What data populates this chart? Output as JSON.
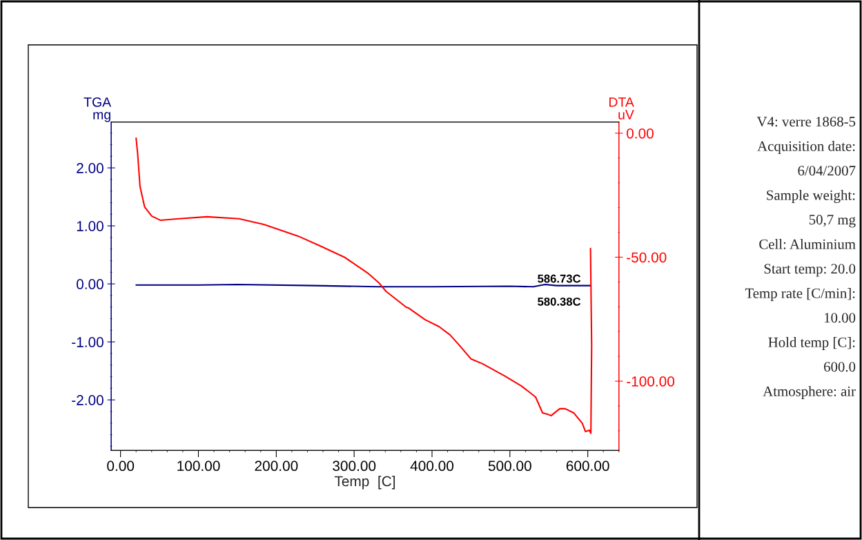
{
  "chart_data": [
    {
      "type": "line",
      "xlabel": "Temp  [C]",
      "ylabel": "TGA\nmg",
      "y2label": "DTA\nuV",
      "xlim": [
        -12,
        640
      ],
      "xticks": [
        {
          "value": 0,
          "label": "0.00"
        },
        {
          "value": 100,
          "label": "100.00"
        },
        {
          "value": 200,
          "label": "200.00"
        },
        {
          "value": 300,
          "label": "300.00"
        },
        {
          "value": 400,
          "label": "400.00"
        },
        {
          "value": 500,
          "label": "500.00"
        },
        {
          "value": 600,
          "label": "600.00"
        }
      ],
      "ylim": [
        -2.87,
        2.79
      ],
      "yticks": [
        {
          "value": -2,
          "label": "-2.00"
        },
        {
          "value": -1,
          "label": "-1.00"
        },
        {
          "value": 0,
          "label": "0.00"
        },
        {
          "value": 1,
          "label": "1.00"
        },
        {
          "value": 2,
          "label": "2.00"
        }
      ],
      "y2lim": [
        -127.9,
        4.5
      ],
      "y2ticks": [
        {
          "value": -100,
          "label": "-100.00"
        },
        {
          "value": -50,
          "label": "-50.00"
        },
        {
          "value": 0,
          "label": "0.00"
        }
      ],
      "grid": false,
      "legend": false,
      "line_style": "solid",
      "marker": "none",
      "annotations": [
        "586.73C",
        "580.38C"
      ],
      "series": [
        {
          "color": "#000080",
          "axis": "y",
          "x": [
            20,
            100,
            150,
            250,
            330,
            400,
            500,
            530,
            545,
            560,
            600,
            604
          ],
          "values": [
            -0.02,
            -0.02,
            -0.01,
            -0.03,
            -0.05,
            -0.05,
            -0.04,
            -0.05,
            -0.01,
            -0.03,
            -0.03,
            -0.03
          ]
        },
        {
          "color": "#ff0000",
          "axis": "y2",
          "x": [
            20,
            22,
            25,
            31,
            40,
            51,
            75,
            111,
            152,
            184,
            228,
            258,
            288,
            317,
            332,
            341,
            367,
            370,
            391,
            409,
            423,
            435,
            450,
            465,
            494,
            515,
            533,
            542,
            549,
            553,
            564,
            571,
            582,
            593,
            597,
            602,
            604,
            605,
            603.5
          ],
          "values": [
            -2,
            -8.4,
            -21.5,
            -29.8,
            -33.4,
            -35.1,
            -34.5,
            -33.7,
            -34.5,
            -36.8,
            -41.5,
            -45.7,
            -50.1,
            -56.3,
            -60.4,
            -63.8,
            -70.2,
            -70.5,
            -75.2,
            -78,
            -81.3,
            -85.5,
            -91,
            -93,
            -98,
            -102,
            -106.4,
            -112.8,
            -113.4,
            -113.9,
            -111.1,
            -111.1,
            -112.8,
            -117,
            -120.3,
            -119.8,
            -121,
            -85.5,
            -46.5
          ]
        }
      ]
    },
    {
      "type": "other",
      "annotations": [
        "V4: verre 1868-5",
        "Acquisition date:",
        "6/04/2007",
        "Sample weight:",
        "50,7 mg",
        "Cell: Aluminium",
        "Start temp: 20.0",
        "Temp rate [C/min]:",
        "10.00",
        "Hold temp [C]:",
        "600.0",
        "Atmosphere: air"
      ]
    }
  ]
}
